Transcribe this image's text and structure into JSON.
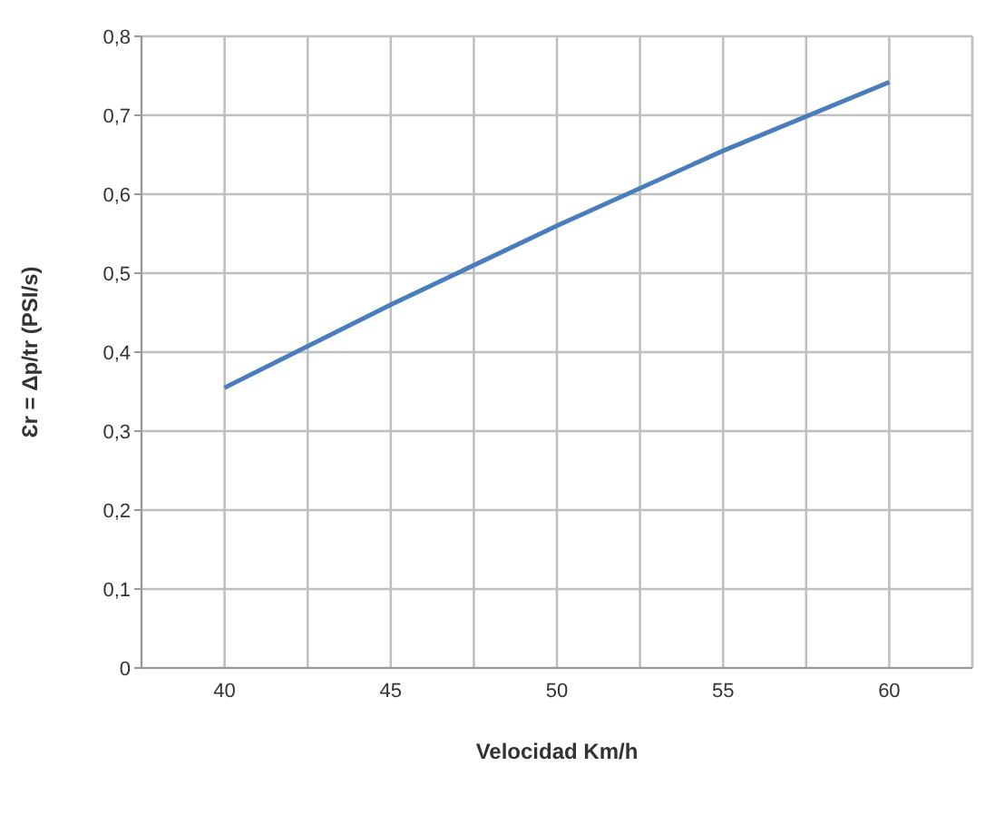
{
  "chart_data": {
    "type": "line",
    "xlabel": "Velocidad Km/h",
    "ylabel": "Ɛr = Δp/tr   (PSI/s)",
    "x": [
      40,
      45,
      50,
      55,
      60
    ],
    "series": [
      {
        "color": "#4a7ebb",
        "values": [
          0.355,
          0.46,
          0.56,
          0.655,
          0.742
        ]
      }
    ],
    "xlim": [
      37.5,
      62.5
    ],
    "xticks": [
      {
        "value": 37.5,
        "label": null
      },
      {
        "value": 40,
        "label": "40"
      },
      {
        "value": 42.5,
        "label": null
      },
      {
        "value": 45,
        "label": "45"
      },
      {
        "value": 47.5,
        "label": null
      },
      {
        "value": 50,
        "label": "50"
      },
      {
        "value": 52.5,
        "label": null
      },
      {
        "value": 55,
        "label": "55"
      },
      {
        "value": 57.5,
        "label": null
      },
      {
        "value": 60,
        "label": "60"
      },
      {
        "value": 62.5,
        "label": null
      }
    ],
    "ylim": [
      0,
      0.8
    ],
    "yticks": [
      {
        "value": 0,
        "label": "0"
      },
      {
        "value": 0.1,
        "label": "0,1"
      },
      {
        "value": 0.2,
        "label": "0,2"
      },
      {
        "value": 0.3,
        "label": "0,3"
      },
      {
        "value": 0.4,
        "label": "0,4"
      },
      {
        "value": 0.5,
        "label": "0,5"
      },
      {
        "value": 0.6,
        "label": "0,6"
      },
      {
        "value": 0.7,
        "label": "0,7"
      },
      {
        "value": 0.8,
        "label": "0,8"
      }
    ],
    "grid": true,
    "marker": "none",
    "line_style": "solid"
  }
}
